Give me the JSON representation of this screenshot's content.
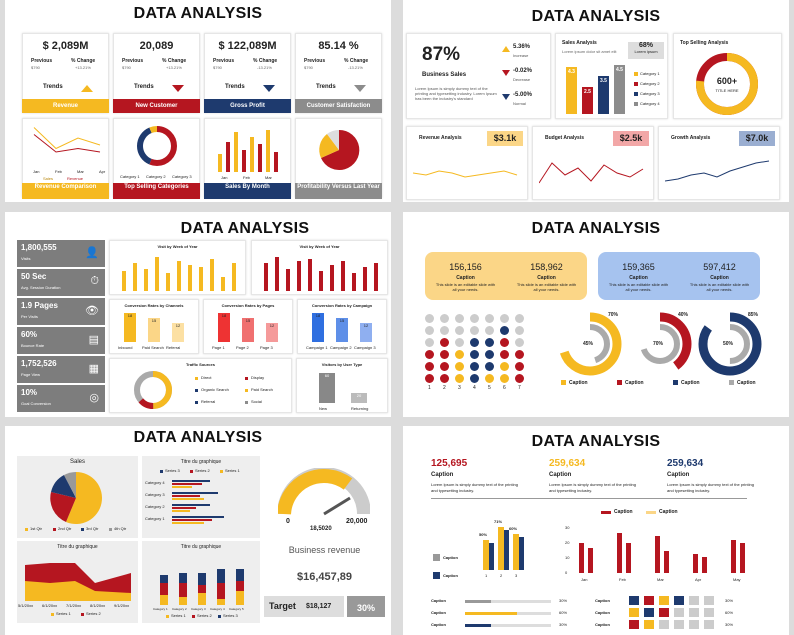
{
  "s1": {
    "title": "DATA ANALYSIS",
    "kpis": [
      {
        "value": "$ 2,089M",
        "prev_label": "Previous",
        "prev": "$790",
        "chg_label": "% Change",
        "chg": "+13.21%",
        "trend": "Trends",
        "footer": "Revenue",
        "dir": "up",
        "color": "#f5b921"
      },
      {
        "value": "20,089",
        "prev_label": "Previous",
        "prev": "$790",
        "chg_label": "% Change",
        "chg": "+13.21%",
        "trend": "Trends",
        "footer": "New Customer",
        "dir": "down",
        "color": "#b51620"
      },
      {
        "value": "$ 122,089M",
        "prev_label": "Previous",
        "prev": "$790",
        "chg_label": "% Change",
        "chg": "-13.21%",
        "trend": "Trends",
        "footer": "Gross Profit",
        "dir": "down",
        "color": "#1e3a6e"
      },
      {
        "value": "85.14 %",
        "prev_label": "Previous",
        "prev": "$790",
        "chg_label": "% Change",
        "chg": "-13.21%",
        "trend": "Trends",
        "footer": "Customer Satisfaction",
        "dir": "down",
        "color": "#8c8c8c"
      }
    ],
    "footers2": [
      "Revenue Comparison",
      "Top Selling Categories",
      "Sales By Month",
      "Profitability Versus Last Year"
    ],
    "months": [
      "Jan",
      "Feb",
      "Mar",
      "Apr"
    ],
    "legend_sales": "Sales",
    "legend_revenue": "Revenue",
    "cat_legend": [
      "Category 1",
      "Category 2",
      "Category 3"
    ]
  },
  "s2": {
    "title": "DATA ANALYSIS",
    "big": "87%",
    "big_label": "Business Sales",
    "desc": "Lorem Ipsum is simply dummy text of the printing and typesetting industry. Lorem Ipsum has been the industry's standard",
    "arrows": [
      {
        "v": "5.36%",
        "l": "Increase"
      },
      {
        "v": "-0.02%",
        "l": "Decrease"
      },
      {
        "v": "-5.00%",
        "l": "Normal"
      }
    ],
    "sales_title": "Sales Analysis",
    "sales_desc": "Lorem ipsum dolor sit amet elit",
    "badge": "68%",
    "badge_sub": "Lorem ipsum",
    "bars": [
      {
        "v": "4.3"
      },
      {
        "v": "2.5"
      },
      {
        "v": "3.5"
      },
      {
        "v": "4.5"
      }
    ],
    "cats": [
      "Category 1",
      "Category 2",
      "Category 3",
      "Category 4"
    ],
    "top_title": "Top Selling Analysis",
    "donut_value": "600+",
    "donut_label": "TITLE HERE",
    "mini": [
      {
        "title": "Revenue Analysis",
        "val": "$3.1k"
      },
      {
        "title": "Budget Analysis",
        "val": "$2.5k"
      },
      {
        "title": "Growth Analysis",
        "val": "$7.0k"
      }
    ]
  },
  "s3": {
    "title": "DATA ANALYSIS",
    "stats": [
      {
        "n": "1,800,555",
        "l": "Visits",
        "i": "👤"
      },
      {
        "n": "50 Sec",
        "l": "Avg. Session Duration",
        "i": "⏱"
      },
      {
        "n": "1.9 Pages",
        "l": "Per Visits",
        "i": "👁"
      },
      {
        "n": "60%",
        "l": "Bounce Rate",
        "i": "▤"
      },
      {
        "n": "1,752,526",
        "l": "Page View",
        "i": "▦"
      },
      {
        "n": "10%",
        "l": "Goal Conversion",
        "i": "◎"
      }
    ],
    "t1": "Visit by Week of Year",
    "t2": "Visit by Week of Year",
    "t3": "Conversion Rates by Channels",
    "t4": "Conversion Rates by Pages",
    "t5": "Conversion Rates by Campaign",
    "t6": "Traffic Sources",
    "t7": "Visitors by User Type",
    "ch_labels": [
      "Inbound",
      "Paid Search",
      "Referral"
    ],
    "pg_labels": [
      "Page 1",
      "Page 2",
      "Page 3"
    ],
    "cp_labels": [
      "Campaign 1",
      "Campaign 2",
      "Campaign 3"
    ],
    "ts_legend": [
      "Direct",
      "Display",
      "Organic Search",
      "Paid Search",
      "Referral",
      "Social"
    ],
    "ut_labels": [
      "New",
      "Returning"
    ]
  },
  "s4": {
    "title": "DATA ANALYSIS",
    "box1": [
      {
        "v": "156,156",
        "c": "Caption",
        "d": "This slide is an editable slide with all your needs."
      },
      {
        "v": "158,962",
        "c": "Caption",
        "d": "This slide is an editable slide with all your needs."
      }
    ],
    "box2": [
      {
        "v": "159,365",
        "c": "Caption",
        "d": "This slide is an editable slide with all your needs."
      },
      {
        "v": "597,412",
        "c": "Caption",
        "d": "This slide is an editable slide with all your needs."
      }
    ],
    "cols": [
      "1",
      "2",
      "3",
      "4",
      "5",
      "6",
      "7"
    ],
    "rings": [
      {
        "outer": "70%",
        "inner": "45%"
      },
      {
        "outer": "40%",
        "inner": "70%"
      },
      {
        "outer": "85%",
        "inner": "50%"
      }
    ],
    "captions": [
      "Caption",
      "Caption",
      "Caption",
      "Caption"
    ]
  },
  "s5": {
    "title": "DATA ANALYSIS",
    "sales": "Sales",
    "qtrs": [
      "1st Qtr",
      "2nd Qtr",
      "3rd Qtr",
      "4th Qtr"
    ],
    "t_graph": "Titre du graphique",
    "series": [
      "Series 3",
      "Series 2",
      "Series 1"
    ],
    "cats": [
      "Category 4",
      "Category 3",
      "Category 2",
      "Category 1"
    ],
    "gauge_min": "0",
    "gauge_max": "20,000",
    "gauge_val": "18,5020",
    "dates": [
      "5/1/20xx",
      "6/1/20xx",
      "7/1/20xx",
      "8/1/20xx",
      "9/1/20xx"
    ],
    "area_legend": [
      "Series 1",
      "Series 2"
    ],
    "br_title": "Business revenue",
    "br_value": "$16,457,89",
    "target_label": "Target",
    "target_val": "$18,127",
    "target_pct": "30%",
    "stack_legend": [
      "Series 1",
      "Series 2",
      "Series 3"
    ],
    "stack_cats": [
      "Category 1",
      "Category 2",
      "Category 3",
      "Category 4",
      "Category 5"
    ]
  },
  "s6": {
    "title": "DATA ANALYSIS",
    "heads": [
      {
        "v": "125,695",
        "c": "Caption",
        "d": "Lorem Ipsum is simply dummy text of the printing and typesetting industry."
      },
      {
        "v": "259,634",
        "c": "Caption",
        "d": "Lorem Ipsum is simply dummy text of the printing and typesetting industry."
      },
      {
        "v": "259,634",
        "c": "Caption",
        "d": "Lorem Ipsum is simply dummy text of the printing and typesetting industry."
      }
    ],
    "pct": [
      "50%",
      "71%",
      "60%"
    ],
    "xs": [
      "1",
      "2",
      "3"
    ],
    "leg": [
      "Caption",
      "Caption"
    ],
    "months": [
      "Jan",
      "Feb",
      "Mar",
      "Apr",
      "May"
    ],
    "yt": [
      "0",
      "10",
      "20",
      "30"
    ],
    "prog": [
      {
        "l": "Caption",
        "v": "30%"
      },
      {
        "l": "Caption",
        "v": "60%"
      },
      {
        "l": "Caption",
        "v": "30%"
      }
    ],
    "grid_labels": [
      "Caption",
      "Caption",
      "Caption"
    ],
    "grid_pct": [
      "30%",
      "60%",
      "30%"
    ]
  },
  "chart_data": [
    {
      "type": "line",
      "title": "Revenue Comparison",
      "categories": [
        "Jan",
        "Feb",
        "Mar",
        "Apr"
      ],
      "series": [
        {
          "name": "Sales",
          "values": [
            55,
            25,
            40,
            30
          ]
        },
        {
          "name": "Revenue",
          "values": [
            45,
            20,
            25,
            20
          ]
        }
      ]
    },
    {
      "type": "bar",
      "title": "Sales Analysis",
      "categories": [
        "Category 1",
        "Category 2",
        "Category 3",
        "Category 4"
      ],
      "values": [
        4.3,
        2.5,
        3.5,
        4.5
      ]
    },
    {
      "type": "bar",
      "title": "Conversion Rates by Channels",
      "categories": [
        "Inbound",
        "Paid Search",
        "Referral"
      ],
      "values": [
        18,
        15,
        12
      ]
    },
    {
      "type": "bar",
      "title": "Conversion Rates by Pages",
      "categories": [
        "Page 1",
        "Page 2",
        "Page 3"
      ],
      "values": [
        18,
        15,
        12
      ]
    },
    {
      "type": "bar",
      "title": "Conversion Rates by Campaign",
      "categories": [
        "Campaign 1",
        "Campaign 2",
        "Campaign 3"
      ],
      "values": [
        18,
        15,
        12
      ]
    },
    {
      "type": "bar",
      "title": "Visitors by User Type",
      "categories": [
        "New",
        "Returning"
      ],
      "values": [
        60,
        20
      ]
    },
    {
      "type": "bar",
      "title": "",
      "categories": [
        "1",
        "2",
        "3"
      ],
      "values": [
        50,
        71,
        60
      ]
    },
    {
      "type": "bar",
      "title": "",
      "categories": [
        "Jan",
        "Feb",
        "Mar",
        "Apr",
        "May"
      ],
      "series": [
        {
          "name": "Caption",
          "values": [
            20,
            27,
            25,
            13,
            22
          ]
        },
        {
          "name": "Caption",
          "values": [
            17,
            20,
            15,
            11,
            20
          ]
        }
      ]
    }
  ]
}
